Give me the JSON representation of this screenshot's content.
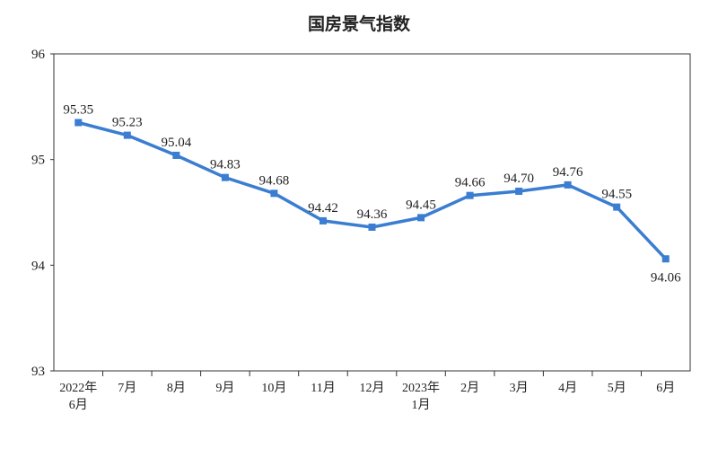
{
  "chart_data": {
    "type": "line",
    "title": "国房景气指数",
    "xlabel": "",
    "ylabel": "",
    "ylim": [
      93,
      96
    ],
    "yticks": [
      93,
      94,
      95,
      96
    ],
    "categories": [
      {
        "line1": "2022年",
        "line2": "6月"
      },
      {
        "line1": "7月",
        "line2": ""
      },
      {
        "line1": "8月",
        "line2": ""
      },
      {
        "line1": "9月",
        "line2": ""
      },
      {
        "line1": "10月",
        "line2": ""
      },
      {
        "line1": "11月",
        "line2": ""
      },
      {
        "line1": "12月",
        "line2": ""
      },
      {
        "line1": "2023年",
        "line2": "1月"
      },
      {
        "line1": "2月",
        "line2": ""
      },
      {
        "line1": "3月",
        "line2": ""
      },
      {
        "line1": "4月",
        "line2": ""
      },
      {
        "line1": "5月",
        "line2": ""
      },
      {
        "line1": "6月",
        "line2": ""
      }
    ],
    "values": [
      95.35,
      95.23,
      95.04,
      94.83,
      94.68,
      94.42,
      94.36,
      94.45,
      94.66,
      94.7,
      94.76,
      94.55,
      94.06
    ],
    "value_labels": [
      "95.35",
      "95.23",
      "95.04",
      "94.83",
      "94.68",
      "94.42",
      "94.36",
      "94.45",
      "94.66",
      "94.70",
      "94.76",
      "94.55",
      "94.06"
    ],
    "label_placement": [
      "above",
      "above",
      "above",
      "above",
      "above",
      "above",
      "above",
      "above",
      "above",
      "above",
      "above",
      "above",
      "below"
    ],
    "grid": false,
    "legend": "none",
    "line_color": "#3a7dd1"
  }
}
